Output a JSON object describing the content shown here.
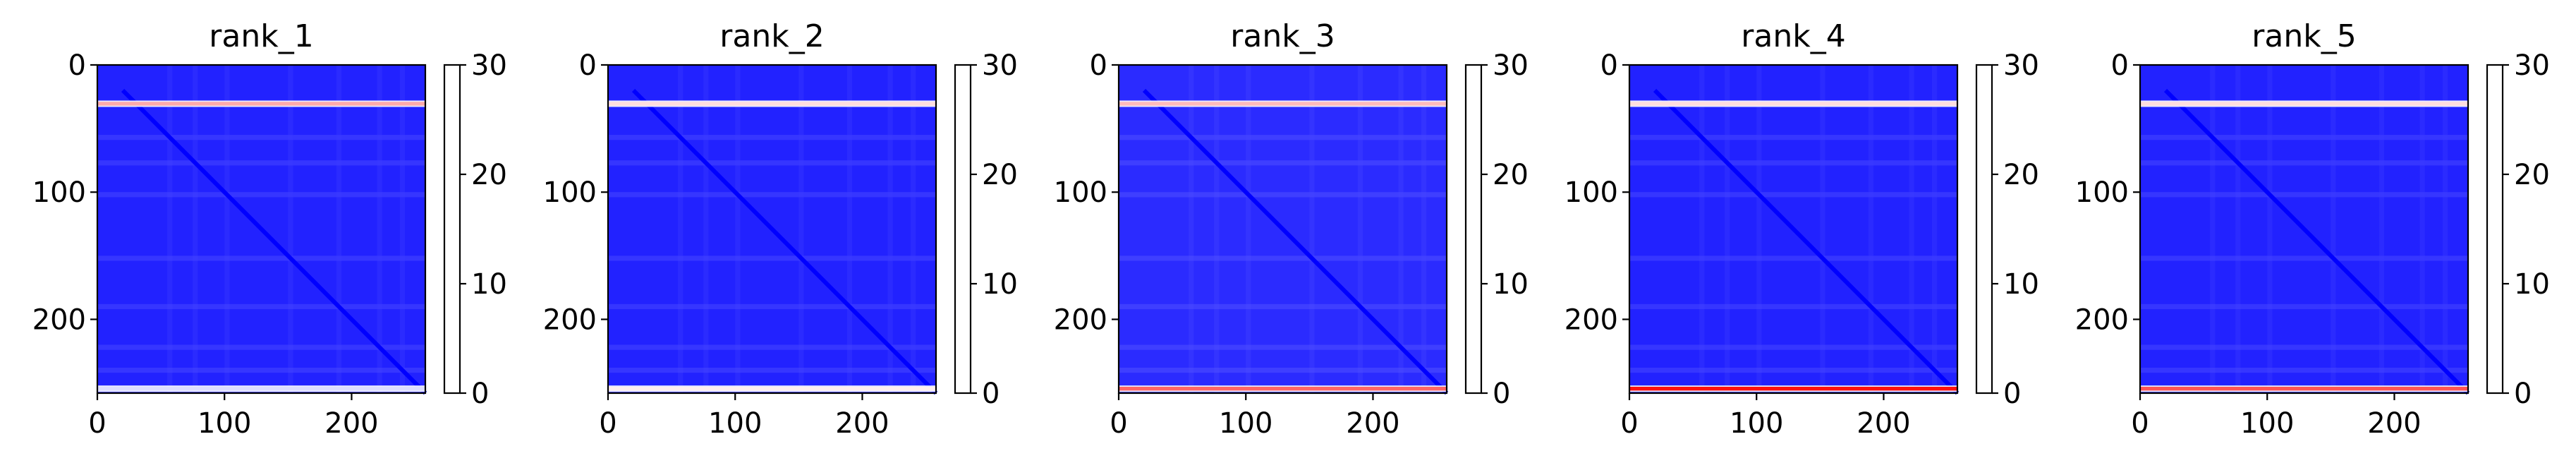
{
  "chart_data": [
    {
      "type": "heatmap",
      "title": "rank_1",
      "matrix_size": 258,
      "x_ticks": [
        "0",
        "100",
        "200"
      ],
      "y_ticks": [
        "0",
        "100",
        "200"
      ],
      "xlim": [
        0,
        258
      ],
      "ylim": [
        258,
        0
      ],
      "colormap": "bwr",
      "colorbar": {
        "min": 0,
        "max": 30,
        "ticks": [
          "0",
          "10",
          "20",
          "30"
        ]
      },
      "typical_value": 2,
      "diagonal_value": 0,
      "bright_rows": [
        {
          "row": 30,
          "value": 20
        },
        {
          "row": 254,
          "value": 13
        }
      ],
      "faint_bands": [
        55,
        75,
        100,
        150,
        188,
        220,
        238
      ]
    },
    {
      "type": "heatmap",
      "title": "rank_2",
      "matrix_size": 258,
      "x_ticks": [
        "0",
        "100",
        "200"
      ],
      "y_ticks": [
        "0",
        "100",
        "200"
      ],
      "xlim": [
        0,
        258
      ],
      "ylim": [
        258,
        0
      ],
      "colormap": "bwr",
      "colorbar": {
        "min": 0,
        "max": 30,
        "ticks": [
          "0",
          "10",
          "20",
          "30"
        ]
      },
      "typical_value": 2,
      "diagonal_value": 0,
      "bright_rows": [
        {
          "row": 30,
          "value": 17
        },
        {
          "row": 254,
          "value": 16
        }
      ],
      "faint_bands": [
        55,
        75,
        100,
        150,
        188,
        220,
        238
      ]
    },
    {
      "type": "heatmap",
      "title": "rank_3",
      "matrix_size": 258,
      "x_ticks": [
        "0",
        "100",
        "200"
      ],
      "y_ticks": [
        "0",
        "100",
        "200"
      ],
      "xlim": [
        0,
        258
      ],
      "ylim": [
        258,
        0
      ],
      "colormap": "bwr",
      "colorbar": {
        "min": 0,
        "max": 30,
        "ticks": [
          "0",
          "10",
          "20",
          "30"
        ]
      },
      "typical_value": 2.5,
      "diagonal_value": 0,
      "bright_rows": [
        {
          "row": 30,
          "value": 19
        },
        {
          "row": 254,
          "value": 24
        }
      ],
      "faint_bands": [
        55,
        75,
        100,
        150,
        188,
        220,
        238
      ]
    },
    {
      "type": "heatmap",
      "title": "rank_4",
      "matrix_size": 258,
      "x_ticks": [
        "0",
        "100",
        "200"
      ],
      "y_ticks": [
        "0",
        "100",
        "200"
      ],
      "xlim": [
        0,
        258
      ],
      "ylim": [
        258,
        0
      ],
      "colormap": "bwr",
      "colorbar": {
        "min": 0,
        "max": 30,
        "ticks": [
          "0",
          "10",
          "20",
          "30"
        ]
      },
      "typical_value": 2,
      "diagonal_value": 0,
      "bright_rows": [
        {
          "row": 30,
          "value": 17
        },
        {
          "row": 254,
          "value": 29
        }
      ],
      "faint_bands": [
        55,
        75,
        100,
        150,
        188,
        220,
        238
      ]
    },
    {
      "type": "heatmap",
      "title": "rank_5",
      "matrix_size": 258,
      "x_ticks": [
        "0",
        "100",
        "200"
      ],
      "y_ticks": [
        "0",
        "100",
        "200"
      ],
      "xlim": [
        0,
        258
      ],
      "ylim": [
        258,
        0
      ],
      "colormap": "bwr",
      "colorbar": {
        "min": 0,
        "max": 30,
        "ticks": [
          "0",
          "10",
          "20",
          "30"
        ]
      },
      "typical_value": 2,
      "diagonal_value": 0,
      "bright_rows": [
        {
          "row": 30,
          "value": 17
        },
        {
          "row": 254,
          "value": 25
        }
      ],
      "faint_bands": [
        55,
        75,
        100,
        150,
        188,
        220,
        238
      ]
    }
  ]
}
